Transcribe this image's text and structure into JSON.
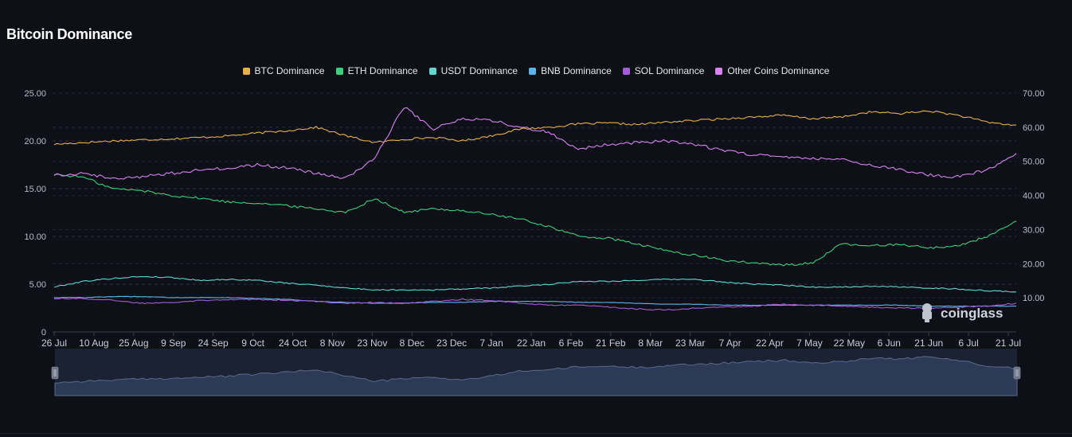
{
  "title": "Bitcoin Dominance",
  "watermark": "coinglass",
  "legend": [
    {
      "name": "BTC Dominance",
      "color": "#e8b04b"
    },
    {
      "name": "ETH Dominance",
      "color": "#3ecf7a"
    },
    {
      "name": "USDT Dominance",
      "color": "#5fd7cf"
    },
    {
      "name": "BNB Dominance",
      "color": "#5eb4ea"
    },
    {
      "name": "SOL Dominance",
      "color": "#a55bd8"
    },
    {
      "name": "Other Coins Dominance",
      "color": "#d783f0"
    }
  ],
  "chart_data": {
    "type": "line",
    "title": "Bitcoin Dominance",
    "legend_position": "top-center",
    "grid": true,
    "x_ticks": [
      "26 Jul",
      "10 Aug",
      "25 Aug",
      "9 Sep",
      "24 Sep",
      "9 Oct",
      "24 Oct",
      "8 Nov",
      "23 Nov",
      "8 Dec",
      "23 Dec",
      "7 Jan",
      "22 Jan",
      "6 Feb",
      "21 Feb",
      "8 Mar",
      "23 Mar",
      "7 Apr",
      "22 Apr",
      "7 May",
      "22 May",
      "6 Jun",
      "21 Jun",
      "6 Jul",
      "21 Jul"
    ],
    "y_left": {
      "ticks": [
        "25.00",
        "20.00",
        "15.00",
        "10.00",
        "5.00",
        "0"
      ],
      "range": [
        0,
        25
      ]
    },
    "y_right": {
      "ticks": [
        "70.00",
        "60.00",
        "50.00",
        "40.00",
        "30.00",
        "20.00",
        "10.00"
      ],
      "range": [
        0,
        70
      ]
    },
    "series": [
      {
        "name": "BTC Dominance",
        "axis": "right",
        "color": "#e8b04b",
        "values": [
          55.0,
          55.5,
          56.0,
          56.3,
          56.6,
          57.0,
          57.5,
          58.3,
          59.0,
          60.0,
          57.5,
          55.5,
          56.5,
          57.0,
          56.0,
          57.5,
          59.5,
          60.0,
          61.0,
          61.2,
          60.8,
          61.5,
          62.0,
          62.5,
          63.0,
          63.5,
          62.5,
          63.0,
          64.5,
          64.0,
          64.8,
          63.5,
          61.5,
          60.5
        ]
      },
      {
        "name": "ETH Dominance",
        "axis": "left",
        "color": "#3ecf7a",
        "values": [
          16.5,
          16.2,
          15.0,
          14.8,
          14.3,
          14.0,
          13.6,
          13.5,
          13.2,
          12.9,
          12.5,
          14.0,
          12.5,
          12.9,
          12.7,
          12.3,
          11.8,
          11.0,
          10.0,
          9.8,
          9.2,
          8.5,
          8.0,
          7.5,
          7.2,
          7.0,
          7.2,
          9.2,
          9.0,
          9.2,
          8.8,
          9.0,
          10.0,
          11.5
        ]
      },
      {
        "name": "USDT Dominance",
        "axis": "left",
        "color": "#5fd7cf",
        "values": [
          4.7,
          5.3,
          5.6,
          5.8,
          5.7,
          5.4,
          5.5,
          5.4,
          5.1,
          4.9,
          4.6,
          4.4,
          4.4,
          4.4,
          4.5,
          4.6,
          4.8,
          5.0,
          5.3,
          5.3,
          5.4,
          5.5,
          5.5,
          5.2,
          5.0,
          4.9,
          4.7,
          4.7,
          4.8,
          4.7,
          4.6,
          4.5,
          4.3,
          4.2
        ]
      },
      {
        "name": "BNB Dominance",
        "axis": "left",
        "color": "#5eb4ea",
        "values": [
          3.6,
          3.6,
          3.7,
          3.7,
          3.6,
          3.6,
          3.6,
          3.5,
          3.4,
          3.2,
          3.1,
          3.0,
          3.0,
          3.1,
          3.1,
          3.2,
          3.2,
          3.2,
          3.1,
          3.1,
          3.0,
          2.9,
          2.9,
          2.8,
          2.8,
          2.8,
          2.8,
          2.8,
          2.8,
          2.8,
          2.7,
          2.7,
          2.7,
          2.7
        ]
      },
      {
        "name": "SOL Dominance",
        "axis": "left",
        "color": "#a55bd8",
        "values": [
          3.5,
          3.5,
          3.3,
          3.0,
          3.1,
          3.3,
          3.4,
          3.4,
          3.3,
          3.2,
          3.0,
          3.1,
          3.0,
          3.2,
          3.4,
          3.3,
          3.0,
          2.8,
          2.8,
          2.6,
          2.4,
          2.3,
          2.5,
          2.6,
          2.7,
          2.9,
          2.8,
          2.7,
          2.6,
          2.5,
          2.5,
          2.6,
          2.7,
          3.0
        ]
      },
      {
        "name": "Other Coins Dominance",
        "axis": "right",
        "color": "#d783f0",
        "values": [
          46.0,
          46.5,
          45.0,
          45.5,
          46.5,
          47.5,
          48.0,
          49.0,
          48.0,
          46.5,
          45.0,
          51.0,
          66.0,
          59.5,
          62.5,
          62.0,
          60.0,
          58.5,
          53.5,
          55.0,
          55.5,
          56.0,
          55.0,
          53.0,
          52.0,
          51.5,
          51.0,
          50.5,
          49.0,
          47.5,
          46.0,
          45.5,
          47.5,
          52.0
        ]
      }
    ]
  },
  "navigator": {
    "handle_left": "‖",
    "handle_right": "‖"
  }
}
